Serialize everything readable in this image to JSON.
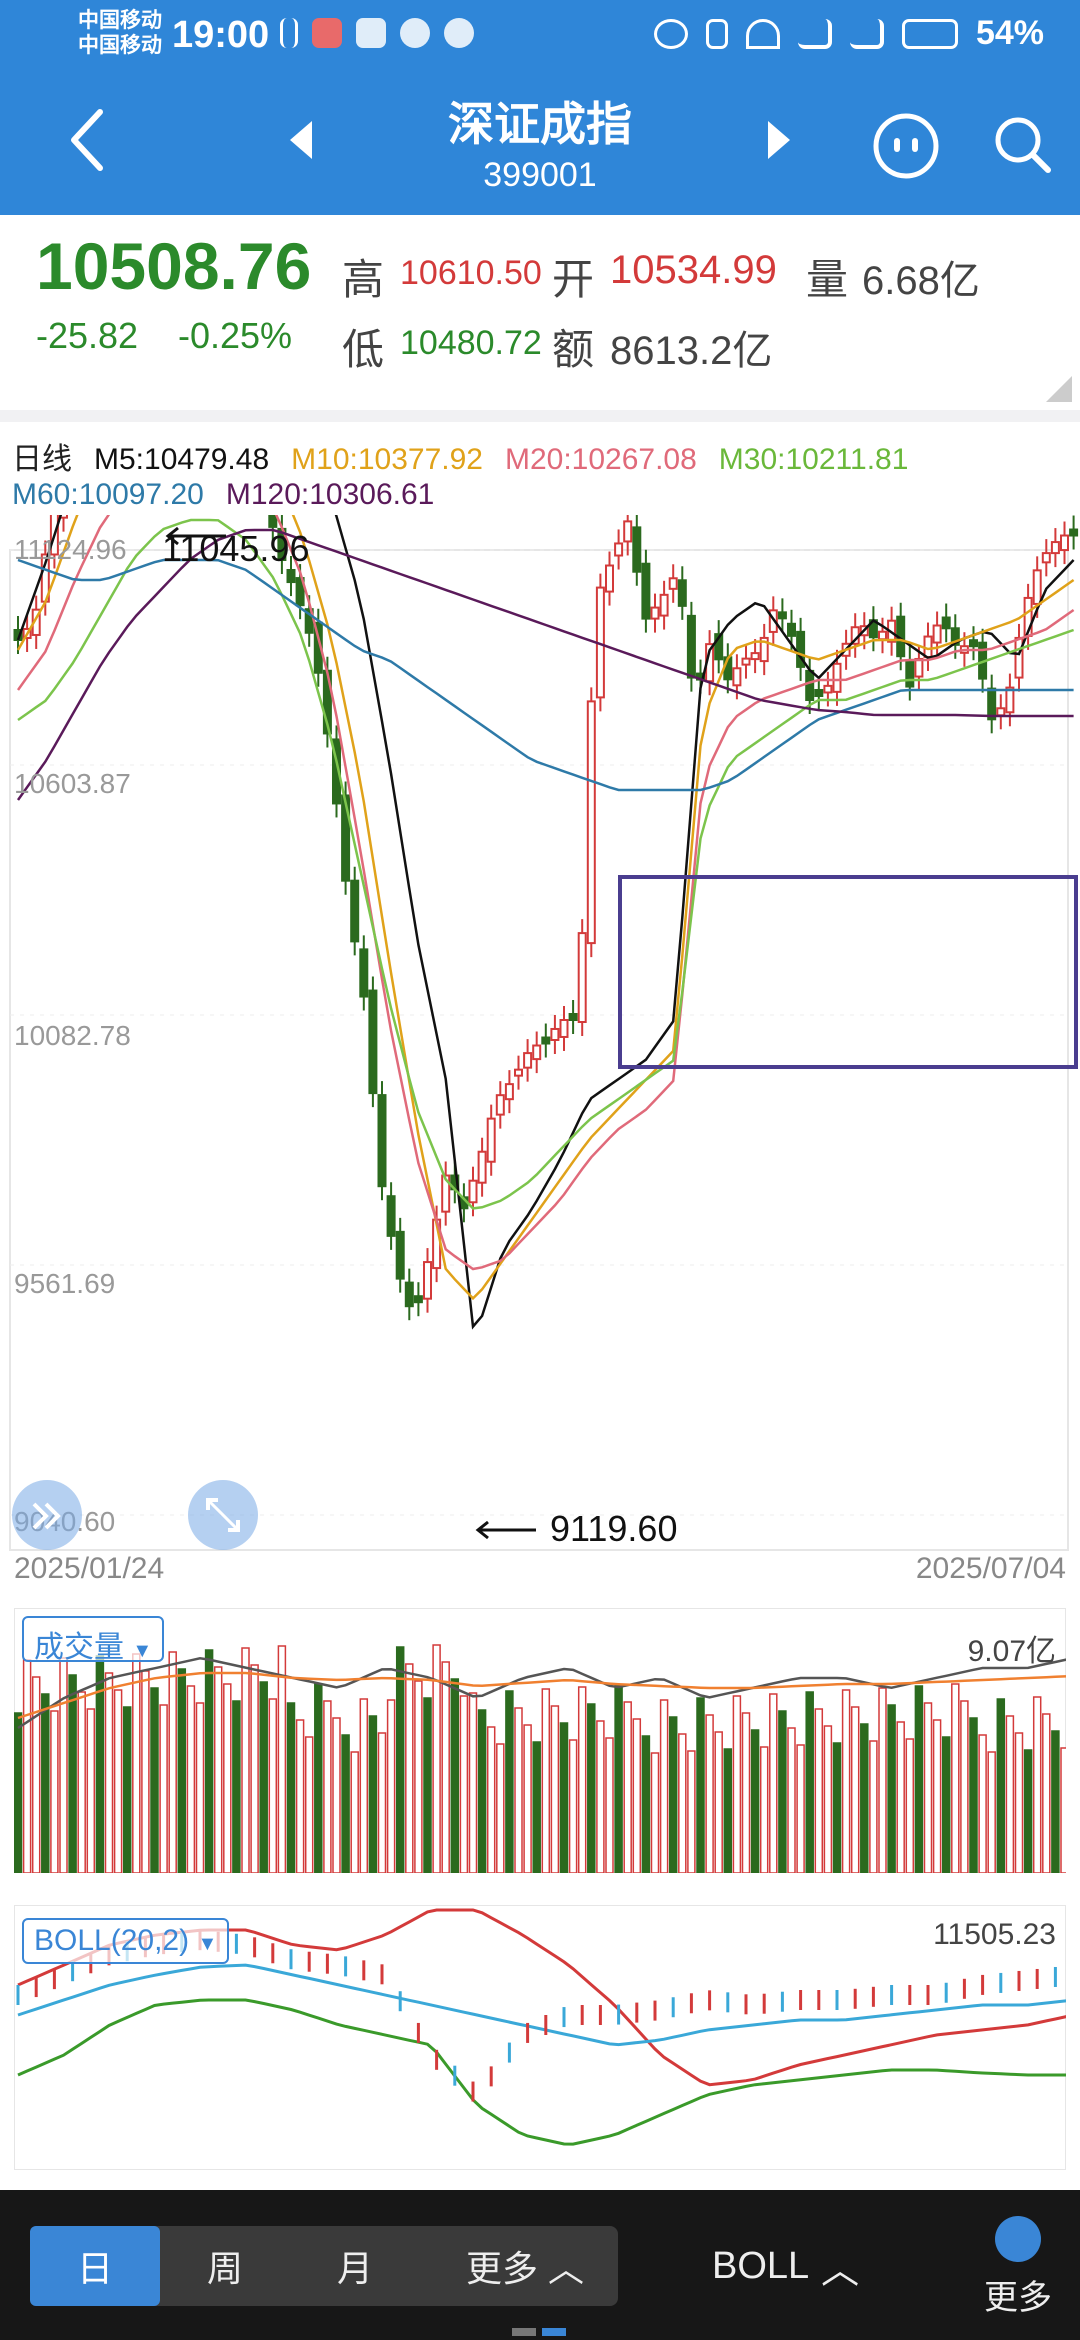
{
  "status_bar": {
    "carrier1": "中国移动",
    "carrier2": "中国移动",
    "time": "19:00",
    "battery": "54%"
  },
  "nav": {
    "title": "深证成指",
    "code": "399001"
  },
  "quote": {
    "price": "10508.76",
    "change": "-25.82",
    "change_pct": "-0.25%",
    "high_label": "高",
    "high": "10610.50",
    "open_label": "开",
    "open": "10534.99",
    "volume_label": "量",
    "volume": "6.68亿",
    "low_label": "低",
    "low": "10480.72",
    "amount_label": "额",
    "amount": "8613.2亿"
  },
  "ma_legend": {
    "period": "日线",
    "m5": "M5:10479.48",
    "m10": "M10:10377.92",
    "m20": "M20:10267.08",
    "m30": "M30:10211.81",
    "m60": "M60:10097.20",
    "m120": "M120:10306.61"
  },
  "price_axis": {
    "ticks": [
      "11124.96",
      "10603.87",
      "10082.78",
      "9561.69",
      "9040.60"
    ],
    "date_start": "2025/01/24",
    "date_end": "2025/07/04",
    "high_mark": "11045.96",
    "low_mark": "9119.60"
  },
  "volume_panel": {
    "selector": "成交量",
    "max_label": "9.07亿"
  },
  "boll_panel": {
    "selector": "BOLL(20,2)",
    "max_label": "11505.23"
  },
  "bottom_bar": {
    "tabs": [
      "日",
      "周",
      "月",
      "更多"
    ],
    "indicator": "BOLL",
    "more": "更多"
  },
  "colors": {
    "brand": "#2f86d8",
    "up": "#d33a3a",
    "down": "#2b6a1e",
    "m5": "#111111",
    "m10": "#e0a21a",
    "m20": "#e06a7a",
    "m30": "#7cc44c",
    "m60": "#2e7aa8",
    "m120": "#5a1a5a"
  }
}
